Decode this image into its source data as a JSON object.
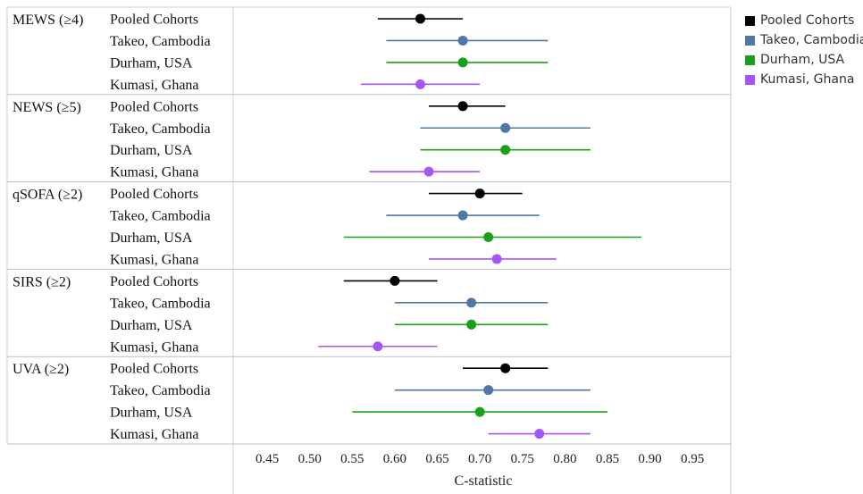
{
  "chart_data": {
    "type": "forest-plot",
    "xlabel": "C-statistic",
    "xlim": [
      0.41,
      0.995
    ],
    "x_ticks": [
      "0.45",
      "0.50",
      "0.55",
      "0.60",
      "0.65",
      "0.70",
      "0.75",
      "0.80",
      "0.85",
      "0.90",
      "0.95"
    ],
    "legend_position": "top-right",
    "series": [
      {
        "name": "Pooled Cohorts",
        "color": "#000000"
      },
      {
        "name": "Takeo, Cambodia",
        "color": "#4e79a7"
      },
      {
        "name": "Durham, USA",
        "color": "#1aa01a"
      },
      {
        "name": "Kumasi, Ghana",
        "color": "#a855f7"
      }
    ],
    "groups": [
      {
        "label": "MEWS (≥4)",
        "rows": [
          {
            "name": "Pooled Cohorts",
            "estimate": 0.63,
            "lower": 0.58,
            "upper": 0.68
          },
          {
            "name": "Takeo, Cambodia",
            "estimate": 0.68,
            "lower": 0.59,
            "upper": 0.78
          },
          {
            "name": "Durham, USA",
            "estimate": 0.68,
            "lower": 0.59,
            "upper": 0.78
          },
          {
            "name": "Kumasi, Ghana",
            "estimate": 0.63,
            "lower": 0.56,
            "upper": 0.7
          }
        ]
      },
      {
        "label": "NEWS (≥5)",
        "rows": [
          {
            "name": "Pooled Cohorts",
            "estimate": 0.68,
            "lower": 0.64,
            "upper": 0.73
          },
          {
            "name": "Takeo, Cambodia",
            "estimate": 0.73,
            "lower": 0.63,
            "upper": 0.83
          },
          {
            "name": "Durham, USA",
            "estimate": 0.73,
            "lower": 0.63,
            "upper": 0.83
          },
          {
            "name": "Kumasi, Ghana",
            "estimate": 0.64,
            "lower": 0.57,
            "upper": 0.7
          }
        ]
      },
      {
        "label": "qSOFA (≥2)",
        "rows": [
          {
            "name": "Pooled Cohorts",
            "estimate": 0.7,
            "lower": 0.64,
            "upper": 0.75
          },
          {
            "name": "Takeo, Cambodia",
            "estimate": 0.68,
            "lower": 0.59,
            "upper": 0.77
          },
          {
            "name": "Durham, USA",
            "estimate": 0.71,
            "lower": 0.54,
            "upper": 0.89
          },
          {
            "name": "Kumasi, Ghana",
            "estimate": 0.72,
            "lower": 0.64,
            "upper": 0.79
          }
        ]
      },
      {
        "label": "SIRS (≥2)",
        "rows": [
          {
            "name": "Pooled Cohorts",
            "estimate": 0.6,
            "lower": 0.54,
            "upper": 0.65
          },
          {
            "name": "Takeo, Cambodia",
            "estimate": 0.69,
            "lower": 0.6,
            "upper": 0.78
          },
          {
            "name": "Durham, USA",
            "estimate": 0.69,
            "lower": 0.6,
            "upper": 0.78
          },
          {
            "name": "Kumasi, Ghana",
            "estimate": 0.58,
            "lower": 0.51,
            "upper": 0.65
          }
        ]
      },
      {
        "label": "UVA (≥2)",
        "rows": [
          {
            "name": "Pooled Cohorts",
            "estimate": 0.73,
            "lower": 0.68,
            "upper": 0.78
          },
          {
            "name": "Takeo, Cambodia",
            "estimate": 0.71,
            "lower": 0.6,
            "upper": 0.83
          },
          {
            "name": "Durham, USA",
            "estimate": 0.7,
            "lower": 0.55,
            "upper": 0.85
          },
          {
            "name": "Kumasi, Ghana",
            "estimate": 0.77,
            "lower": 0.71,
            "upper": 0.83
          }
        ]
      }
    ]
  }
}
